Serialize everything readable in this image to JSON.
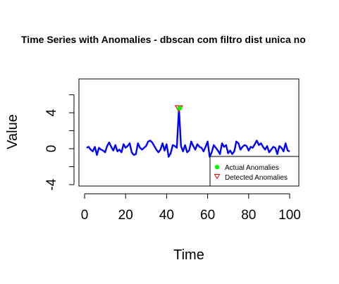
{
  "chart_data": {
    "type": "line",
    "title": "Time Series with Anomalies - dbscan com filtro dist unica no",
    "xlabel": "Time",
    "ylabel": "Value",
    "xlim": [
      0,
      100
    ],
    "ylim": [
      -4,
      8
    ],
    "x_ticks": [
      "0",
      "20",
      "40",
      "60",
      "80",
      "100"
    ],
    "y_ticks": [
      "-4",
      "0",
      "4"
    ],
    "grid": false,
    "legend_position": "bottom-right",
    "colors": {
      "series": "#0000ff",
      "actual_anomaly": "#00ff00",
      "detected_anomaly": "#ff0000"
    },
    "series": [
      {
        "x": [
          1,
          2,
          3,
          4,
          5,
          6,
          7,
          8,
          9,
          10,
          11,
          12,
          13,
          14,
          15,
          16,
          17,
          18,
          19,
          20,
          21,
          22,
          23,
          24,
          25,
          26,
          27,
          28,
          29,
          30,
          31,
          32,
          33,
          34,
          35,
          36,
          37,
          38,
          39,
          40,
          41,
          42,
          43,
          44,
          45,
          46,
          47,
          48,
          49,
          50,
          51,
          52,
          53,
          54,
          55,
          56,
          57,
          58,
          59,
          60,
          61,
          62,
          63,
          64,
          65,
          66,
          67,
          68,
          69,
          70,
          71,
          72,
          73,
          74,
          75,
          76,
          77,
          78,
          79,
          80,
          81,
          82,
          83,
          84,
          85,
          86,
          87,
          88,
          89,
          90,
          91,
          92,
          93,
          94,
          95,
          96,
          97,
          98,
          99,
          100
        ],
        "values": [
          0.1,
          0.2,
          -0.1,
          -0.3,
          0.2,
          -0.7,
          0.1,
          -0.1,
          -0.2,
          -0.4,
          0.3,
          0.7,
          0.2,
          -0.2,
          0.4,
          -0.3,
          -0.1,
          -0.4,
          0.5,
          0.1,
          0.3,
          0.6,
          -0.4,
          -0.7,
          -0.6,
          0.6,
          0.1,
          -0.1,
          0.1,
          0.3,
          0.8,
          0.9,
          0.7,
          0.3,
          -0.1,
          -0.4,
          -0.1,
          0.6,
          -0.2,
          0.5,
          -0.9,
          -0.5,
          0.4,
          0.3,
          0.1,
          4.5,
          0.3,
          -0.3,
          0.4,
          -0.4,
          -0.2,
          0.8,
          0.3,
          -0.1,
          0.5,
          0.2,
          0.1,
          -0.3,
          0.2,
          0.8,
          -0.9,
          -0.4,
          0.4,
          0.1,
          -0.2,
          -0.6,
          0.6,
          0.2,
          0.4,
          -0.5,
          -0.2,
          -0.6,
          -0.3,
          0.8,
          0.6,
          -0.1,
          0.2,
          0.4,
          0.3,
          -0.2,
          0.2,
          0.1,
          0.5,
          0.9,
          0.4,
          0.6,
          0.2,
          -0.1,
          0.3,
          -0.4,
          -0.1,
          0.2,
          0.1,
          -0.6,
          0.3,
          0.1,
          -0.3,
          0.6,
          -0.2,
          -0.3
        ]
      }
    ],
    "anomalies": {
      "actual": [
        {
          "x": 46,
          "y": 4.5
        }
      ],
      "detected": [
        {
          "x": 46,
          "y": 4.5
        }
      ]
    },
    "legend": [
      {
        "label": "Actual Anomalies",
        "marker": "filled-circle",
        "color": "#00ff00"
      },
      {
        "label": "Detected Anomalies",
        "marker": "open-triangle-down",
        "color": "#ff0000"
      }
    ]
  }
}
